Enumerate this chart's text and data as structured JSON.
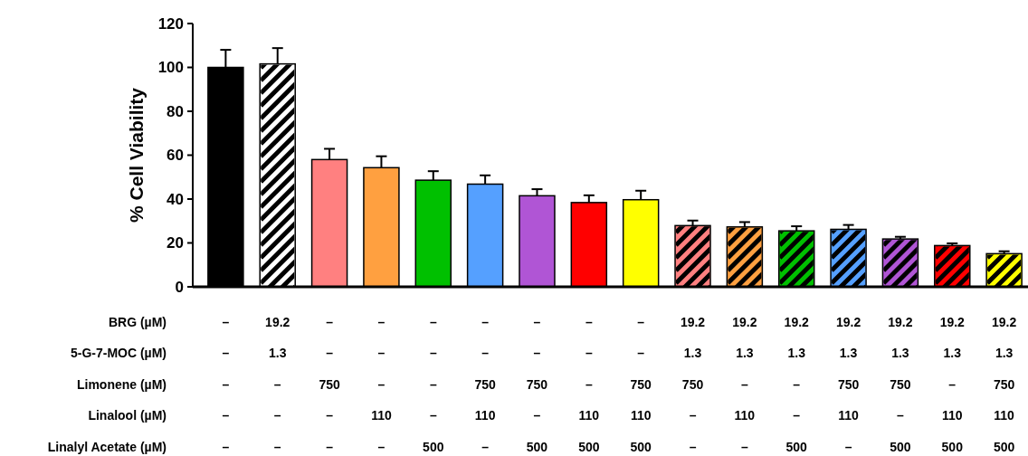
{
  "chart_data": {
    "type": "bar",
    "ylabel": "% Cell Viability",
    "ylim": [
      0,
      120
    ],
    "yticks": [
      0,
      20,
      40,
      60,
      80,
      100,
      120
    ],
    "grid": false,
    "categories": [
      "–\n–\n–\n–\n–",
      "19.2\n1.3\n–\n–\n–",
      "–\n–\n750\n–\n–",
      "–\n–\n–\n110\n–",
      "–\n–\n–\n–\n500",
      "–\n–\n750\n110\n–",
      "–\n–\n750\n–\n500",
      "–\n–\n–\n110\n500",
      "–\n–\n750\n110\n500",
      "19.2\n1.3\n750\n–\n–",
      "19.2\n1.3\n–\n110\n–",
      "19.2\n1.3\n–\n–\n500",
      "19.2\n1.3\n750\n110\n–",
      "19.2\n1.3\n750\n–\n500",
      "19.2\n1.3\n–\n110\n500",
      "19.2\n1.3\n750\n110\n500"
    ],
    "annotations": [
      "BRG (µM)",
      "5-G-7-MOC (µM)",
      "Limonene (µM)",
      "Linalool (µM)",
      "Linalyl Acetate (µM)"
    ],
    "series": [
      {
        "colors": [
          "#000000",
          null,
          "#ff8080",
          "#ffa040",
          "#00c000",
          "#55a0ff",
          "#b055d5",
          "#ff0000",
          "#ffff00",
          null,
          null,
          null,
          null,
          null,
          null,
          null
        ],
        "values": [
          100,
          null,
          58,
          54.3,
          48.6,
          46.8,
          41.5,
          38.4,
          39.7,
          null,
          null,
          null,
          null,
          null,
          null,
          null
        ],
        "errors": [
          8,
          null,
          4.9,
          5.2,
          4.1,
          4,
          3,
          3.3,
          4.1,
          null,
          null,
          null,
          null,
          null,
          null,
          null
        ]
      },
      {
        "colors": [
          null,
          "#ffffff",
          null,
          null,
          null,
          null,
          null,
          null,
          null,
          "#ff8080",
          "#ffa040",
          "#00c000",
          "#55a0ff",
          "#b055d5",
          "#ff0000",
          "#ffff00"
        ],
        "values": [
          null,
          101.6,
          null,
          null,
          null,
          null,
          null,
          null,
          null,
          27.9,
          27.3,
          25.5,
          26.2,
          21.8,
          18.8,
          15.1
        ],
        "errors": [
          null,
          7.2,
          null,
          null,
          null,
          null,
          null,
          null,
          null,
          2.3,
          2.2,
          2.1,
          2,
          1,
          1,
          1.1
        ]
      }
    ]
  }
}
